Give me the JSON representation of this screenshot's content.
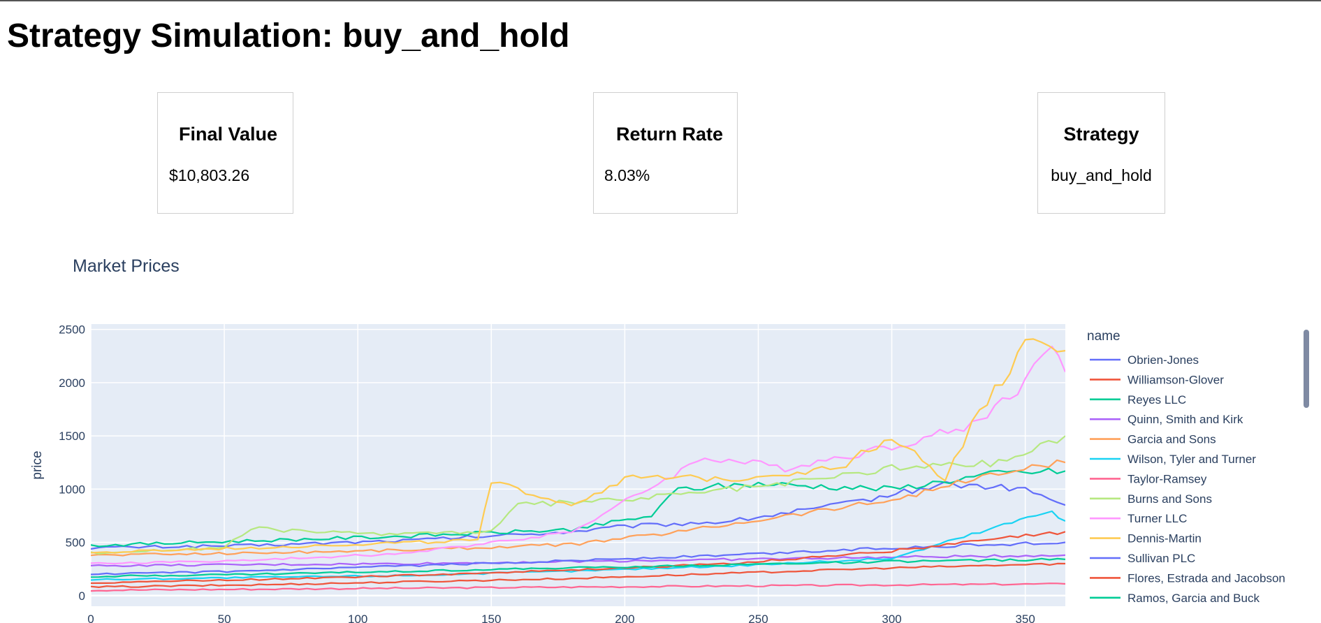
{
  "page": {
    "title": "Strategy Simulation: buy_and_hold"
  },
  "cards": [
    {
      "label": "Final Value",
      "value": "$10,803.26"
    },
    {
      "label": "Return Rate",
      "value": "8.03%"
    },
    {
      "label": "Strategy",
      "value": "buy_and_hold"
    }
  ],
  "chart_data": {
    "type": "line",
    "title": "Market Prices",
    "xlabel": "",
    "ylabel": "price",
    "xlim": [
      0,
      365
    ],
    "ylim": [
      -100,
      2550
    ],
    "xticks": [
      0,
      50,
      100,
      150,
      200,
      250,
      300,
      350
    ],
    "yticks": [
      0,
      500,
      1000,
      1500,
      2000,
      2500
    ],
    "grid": true,
    "legend_title": "name",
    "legend_placement": "right",
    "series": [
      {
        "name": "Obrien-Jones",
        "color": "#636efa",
        "start": 450,
        "end": 850,
        "x": [
          0,
          60,
          120,
          180,
          200,
          240,
          280,
          320,
          350,
          365
        ],
        "y": [
          450,
          470,
          520,
          600,
          650,
          700,
          850,
          1050,
          1000,
          850
        ]
      },
      {
        "name": "Williamson-Glover",
        "color": "#EF553B",
        "x": [
          0,
          60,
          120,
          180,
          240,
          300,
          365
        ],
        "y": [
          80,
          100,
          130,
          160,
          210,
          260,
          300
        ]
      },
      {
        "name": "Reyes LLC",
        "color": "#00cc96",
        "x": [
          0,
          40,
          80,
          120,
          180,
          210,
          220,
          250,
          300,
          340,
          365
        ],
        "y": [
          470,
          500,
          530,
          560,
          620,
          750,
          1000,
          1050,
          1000,
          1150,
          1170
        ]
      },
      {
        "name": "Quinn, Smith and Kirk",
        "color": "#ab63fa",
        "x": [
          0,
          60,
          120,
          180,
          240,
          300,
          365
        ],
        "y": [
          280,
          290,
          300,
          320,
          340,
          360,
          380
        ]
      },
      {
        "name": "Garcia and Sons",
        "color": "#FFA15A",
        "x": [
          0,
          60,
          120,
          180,
          220,
          260,
          300,
          340,
          365
        ],
        "y": [
          380,
          400,
          430,
          480,
          600,
          750,
          900,
          1150,
          1250
        ]
      },
      {
        "name": "Wilson, Tyler and Turner",
        "color": "#19d3f3",
        "x": [
          0,
          60,
          120,
          180,
          240,
          300,
          360,
          365
        ],
        "y": [
          150,
          170,
          190,
          230,
          280,
          350,
          800,
          700
        ]
      },
      {
        "name": "Taylor-Ramsey",
        "color": "#FF6692",
        "x": [
          0,
          60,
          120,
          180,
          240,
          300,
          365
        ],
        "y": [
          50,
          60,
          70,
          80,
          90,
          100,
          110
        ]
      },
      {
        "name": "Burns and Sons",
        "color": "#B6E880",
        "x": [
          0,
          50,
          60,
          100,
          150,
          160,
          200,
          260,
          300,
          340,
          365
        ],
        "y": [
          400,
          450,
          630,
          580,
          600,
          850,
          900,
          1050,
          1200,
          1250,
          1500
        ]
      },
      {
        "name": "Turner LLC",
        "color": "#FF97FF",
        "x": [
          0,
          60,
          120,
          180,
          230,
          260,
          300,
          330,
          350,
          360,
          365
        ],
        "y": [
          300,
          330,
          400,
          600,
          1300,
          1200,
          1400,
          1600,
          2000,
          2400,
          2100
        ]
      },
      {
        "name": "Dennis-Martin",
        "color": "#FECB52",
        "x": [
          0,
          60,
          120,
          145,
          150,
          160,
          180,
          200,
          240,
          280,
          300,
          320,
          330,
          350,
          365
        ],
        "y": [
          400,
          450,
          500,
          520,
          1050,
          1000,
          850,
          1100,
          1100,
          1200,
          1500,
          1100,
          1600,
          2350,
          2300
        ]
      },
      {
        "name": "Sullivan PLC",
        "color": "#636efa",
        "x": [
          0,
          60,
          120,
          180,
          240,
          300,
          365
        ],
        "y": [
          200,
          230,
          280,
          330,
          380,
          450,
          500
        ]
      },
      {
        "name": "Flores, Estrada and Jacobson",
        "color": "#EF553B",
        "x": [
          0,
          60,
          120,
          180,
          240,
          300,
          365
        ],
        "y": [
          120,
          150,
          190,
          240,
          300,
          420,
          600
        ]
      },
      {
        "name": "Ramos, Garcia and Buck",
        "color": "#00cc96",
        "x": [
          0,
          60,
          120,
          180,
          240,
          300,
          365
        ],
        "y": [
          180,
          200,
          230,
          260,
          290,
          320,
          340
        ]
      }
    ]
  }
}
